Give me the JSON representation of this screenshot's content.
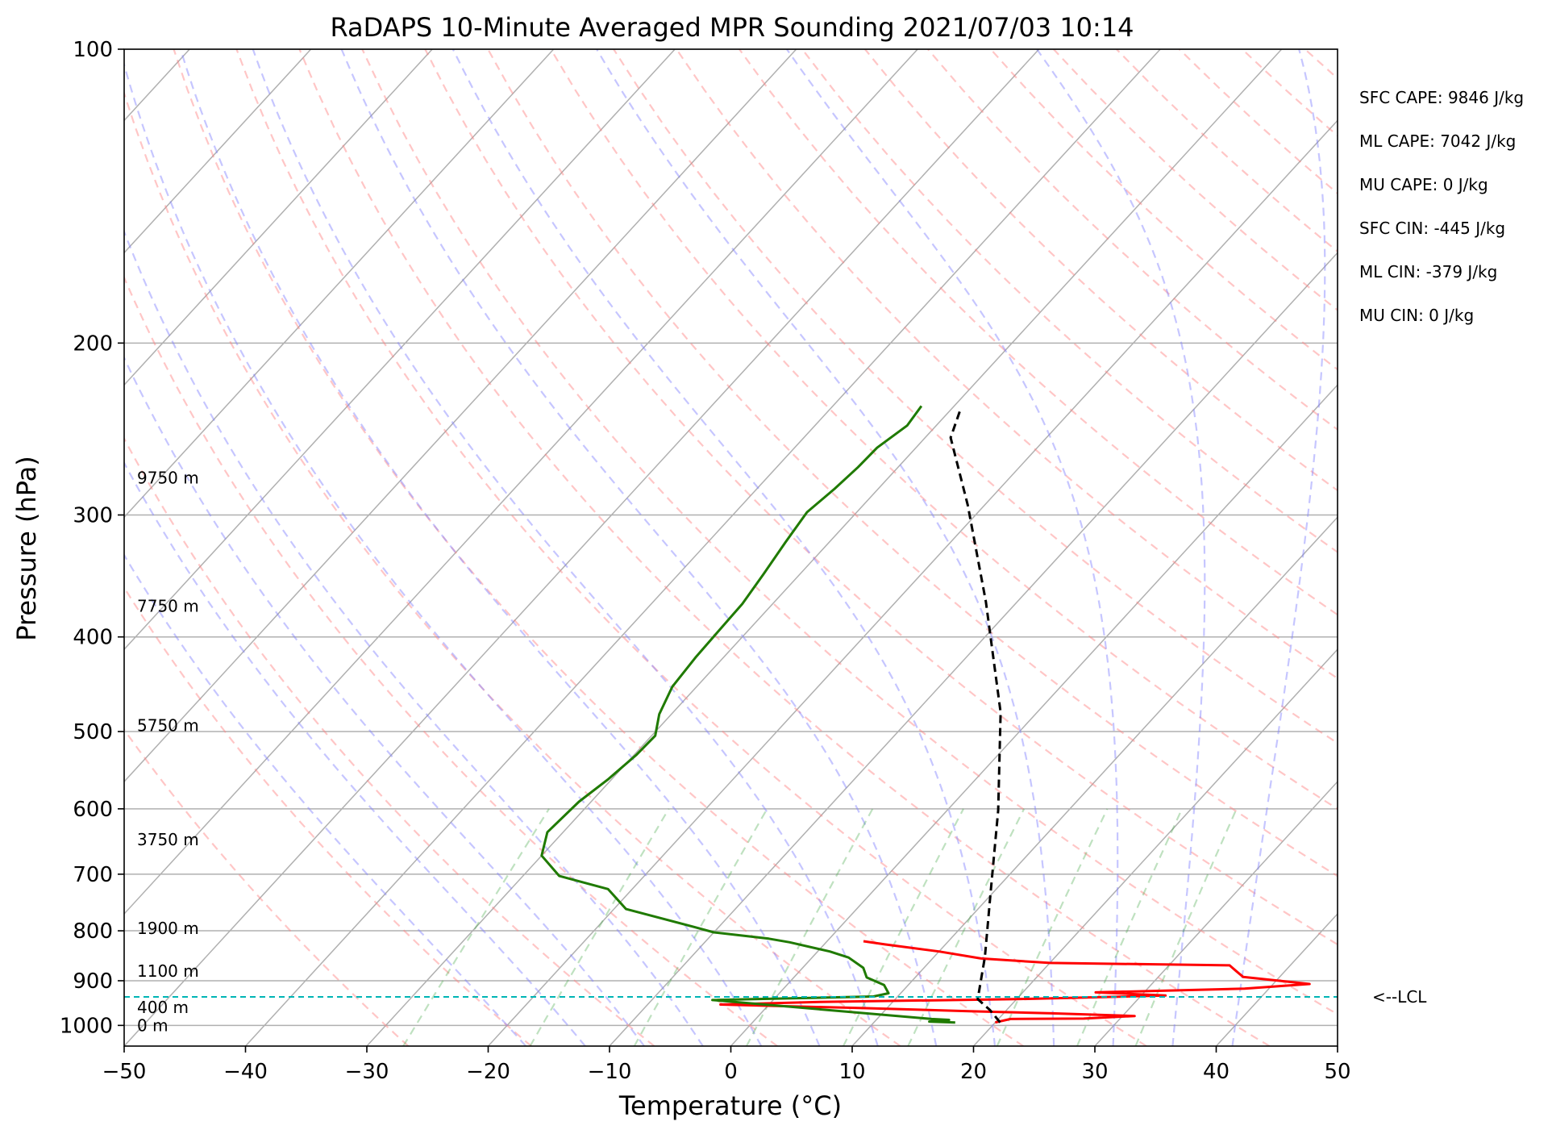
{
  "chart_data": {
    "type": "skew-t",
    "title": "RaDAPS 10-Minute Averaged MPR Sounding 2021/07/03 10:14",
    "xlabel": "Temperature (°C)",
    "ylabel": "Pressure (hPa)",
    "xlim": [
      -50,
      50
    ],
    "ylim": [
      1050,
      100
    ],
    "y_scale": "log",
    "x_ticks": [
      "−50",
      "−40",
      "−30",
      "−20",
      "−10",
      "0",
      "10",
      "20",
      "30",
      "40",
      "50"
    ],
    "x_tick_values": [
      -50,
      -40,
      -30,
      -20,
      -10,
      0,
      10,
      20,
      30,
      40,
      50
    ],
    "y_ticks": [
      "100",
      "200",
      "300",
      "400",
      "500",
      "600",
      "700",
      "800",
      "900",
      "1000"
    ],
    "y_tick_values": [
      100,
      200,
      300,
      400,
      500,
      600,
      700,
      800,
      900,
      1000
    ],
    "height_labels": [
      {
        "text": "9750 m",
        "p": 275
      },
      {
        "text": "7750 m",
        "p": 372
      },
      {
        "text": "5750 m",
        "p": 493
      },
      {
        "text": "3750 m",
        "p": 645
      },
      {
        "text": "1900 m",
        "p": 795
      },
      {
        "text": "1100 m",
        "p": 880
      },
      {
        "text": "400 m",
        "p": 958
      },
      {
        "text": "0 m",
        "p": 1000
      }
    ],
    "stats": [
      "SFC CAPE: 9846 J/kg",
      "ML CAPE: 7042 J/kg",
      "MU CAPE: 0 J/kg",
      "SFC CIN: -445 J/kg",
      "ML CIN: -379 J/kg",
      "MU CIN: 0 J/kg"
    ],
    "lcl": {
      "p": 935,
      "label": "<--LCL"
    },
    "series": [
      {
        "id": "temperature",
        "color": "#ff0000",
        "points": [
          [
            20,
            993
          ],
          [
            21,
            985
          ],
          [
            27,
            984
          ],
          [
            31,
            978
          ],
          [
            24,
            972
          ],
          [
            17,
            967
          ],
          [
            8,
            960
          ],
          [
            -4,
            952
          ],
          [
            4,
            946
          ],
          [
            20,
            940
          ],
          [
            32,
            932
          ],
          [
            26,
            925
          ],
          [
            38,
            917
          ],
          [
            43,
            907
          ],
          [
            37,
            892
          ],
          [
            36,
            880
          ],
          [
            35,
            868
          ],
          [
            20,
            863
          ],
          [
            14,
            854
          ],
          [
            10,
            840
          ],
          [
            5,
            826
          ],
          [
            3,
            820
          ]
        ]
      },
      {
        "id": "dewpoint",
        "color": "#1f7a00",
        "points": [
          [
            16.7,
            993
          ],
          [
            14.5,
            991
          ],
          [
            16,
            987
          ],
          [
            14.5,
            985
          ],
          [
            -5,
            942
          ],
          [
            8,
            934
          ],
          [
            9,
            927
          ],
          [
            8,
            909
          ],
          [
            6,
            893
          ],
          [
            5,
            873
          ],
          [
            3,
            852
          ],
          [
            1,
            840
          ],
          [
            -3,
            822
          ],
          [
            -5,
            815
          ],
          [
            -10,
            803
          ],
          [
            -12,
            793
          ],
          [
            -19,
            760
          ],
          [
            -22,
            725
          ],
          [
            -27,
            703
          ],
          [
            -30,
            670
          ],
          [
            -31.3,
            634
          ],
          [
            -31,
            590
          ],
          [
            -30.3,
            560
          ],
          [
            -29.8,
            528
          ],
          [
            -29.7,
            505
          ],
          [
            -31,
            480
          ],
          [
            -32,
            450
          ],
          [
            -32.3,
            420
          ],
          [
            -32.4,
            395
          ],
          [
            -32.5,
            370
          ],
          [
            -33,
            345
          ],
          [
            -33.6,
            320
          ],
          [
            -34.1,
            298
          ],
          [
            -33.6,
            282
          ],
          [
            -33.3,
            268
          ],
          [
            -33.2,
            256
          ],
          [
            -32.4,
            243
          ],
          [
            -32.7,
            232
          ]
        ]
      },
      {
        "id": "parcel",
        "color": "#000000",
        "points": [
          [
            20.4,
            993
          ],
          [
            18.6,
            964
          ],
          [
            16.8,
            940
          ],
          [
            14.2,
            851
          ],
          [
            9.8,
            731
          ],
          [
            4.2,
            602
          ],
          [
            -3.0,
            478
          ],
          [
            -12.6,
            368
          ],
          [
            -21.4,
            293
          ],
          [
            -27.9,
            250
          ],
          [
            -29.3,
            233
          ]
        ]
      }
    ]
  }
}
